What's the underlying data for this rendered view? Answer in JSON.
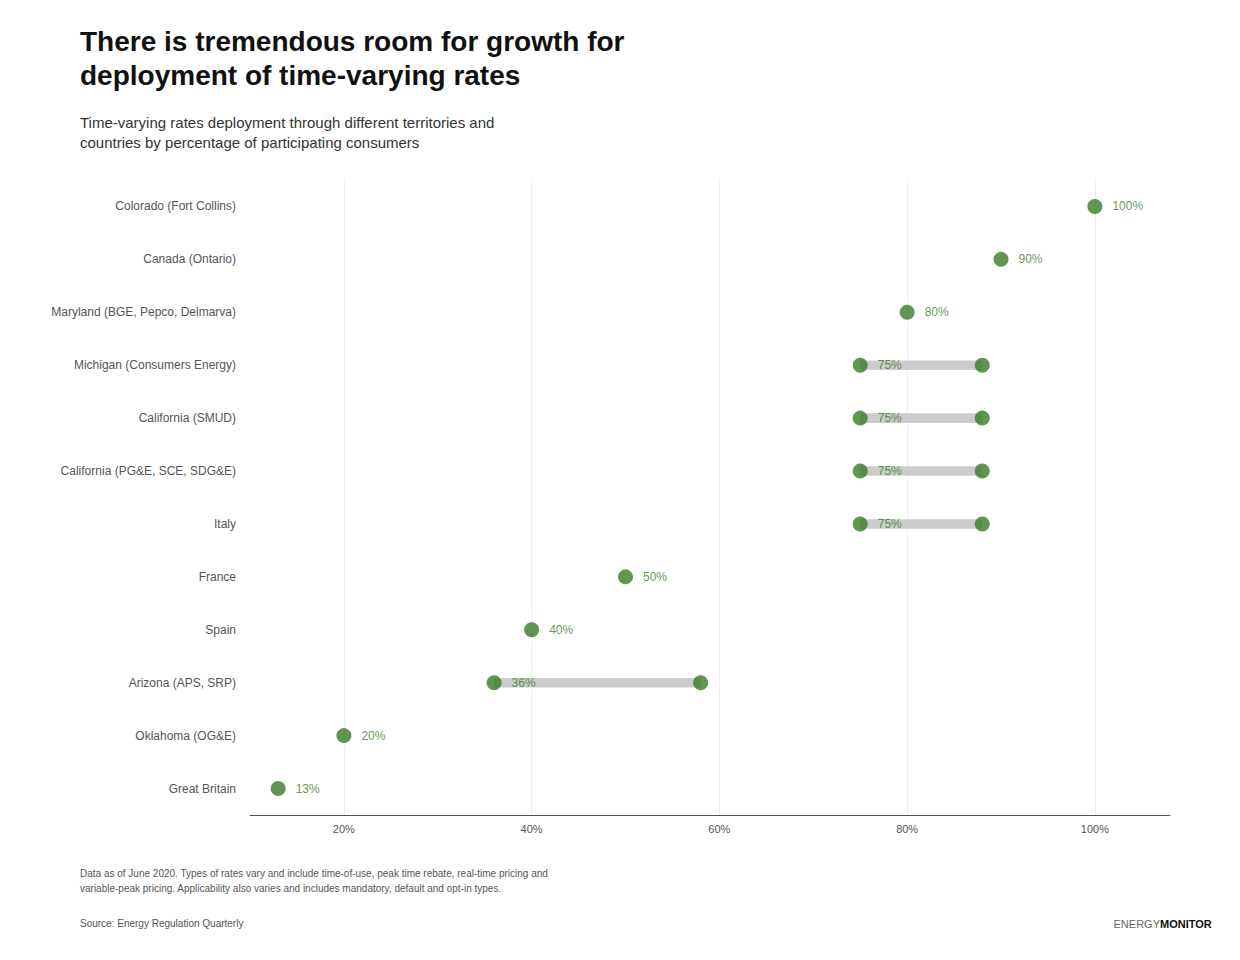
{
  "chart_data": {
    "type": "dumbbell",
    "orientation": "horizontal",
    "title": "There is tremendous room for growth for\ndeployment of time-varying rates",
    "subtitle": "Time-varying rates deployment through different territories and\ncountries by percentage of participating consumers",
    "footnote": "Data as of June 2020. Types of rates vary and include time-of-use, peak time rebate, real-time pricing and\nvariable-peak pricing. Applicability also varies and includes mandatory, default and opt-in types.",
    "source": "Source: Energy Regulation Quarterly",
    "annotations": [
      "ENERGY",
      "MONITOR"
    ],
    "categories": [
      "Colorado (Fort Collins)",
      "Canada (Ontario)",
      "Maryland (BGE, Pepco, Delmarva)",
      "Michigan (Consumers Energy)",
      "California (SMUD)",
      "California (PG&E, SCE, SDG&E)",
      "Italy",
      "France",
      "Spain",
      "Arizona (APS, SRP)",
      "Oklahoma (OG&E)",
      "Great Britain"
    ],
    "series": [
      {
        "type": "scatter",
        "color": "#3a7a27",
        "data_labels": true,
        "values": [
          100,
          90,
          80,
          75,
          75,
          75,
          75,
          50,
          40,
          36,
          20,
          13
        ],
        "value_labels": [
          "100%",
          "90%",
          "80%",
          "75%",
          "75%",
          "75%",
          "75%",
          "50%",
          "40%",
          "36%",
          "20%",
          "13%"
        ]
      },
      {
        "type": "scatter",
        "color": "#3a7a27",
        "values": [
          null,
          null,
          null,
          88,
          88,
          88,
          88,
          null,
          null,
          58,
          null,
          null
        ]
      }
    ],
    "xlim": [
      10,
      108
    ],
    "xticks": [
      {
        "value": 20,
        "label": "20%"
      },
      {
        "value": 40,
        "label": "40%"
      },
      {
        "value": 60,
        "label": "60%"
      },
      {
        "value": 80,
        "label": "80%"
      },
      {
        "value": 100,
        "label": "100%"
      }
    ],
    "grid": true
  }
}
